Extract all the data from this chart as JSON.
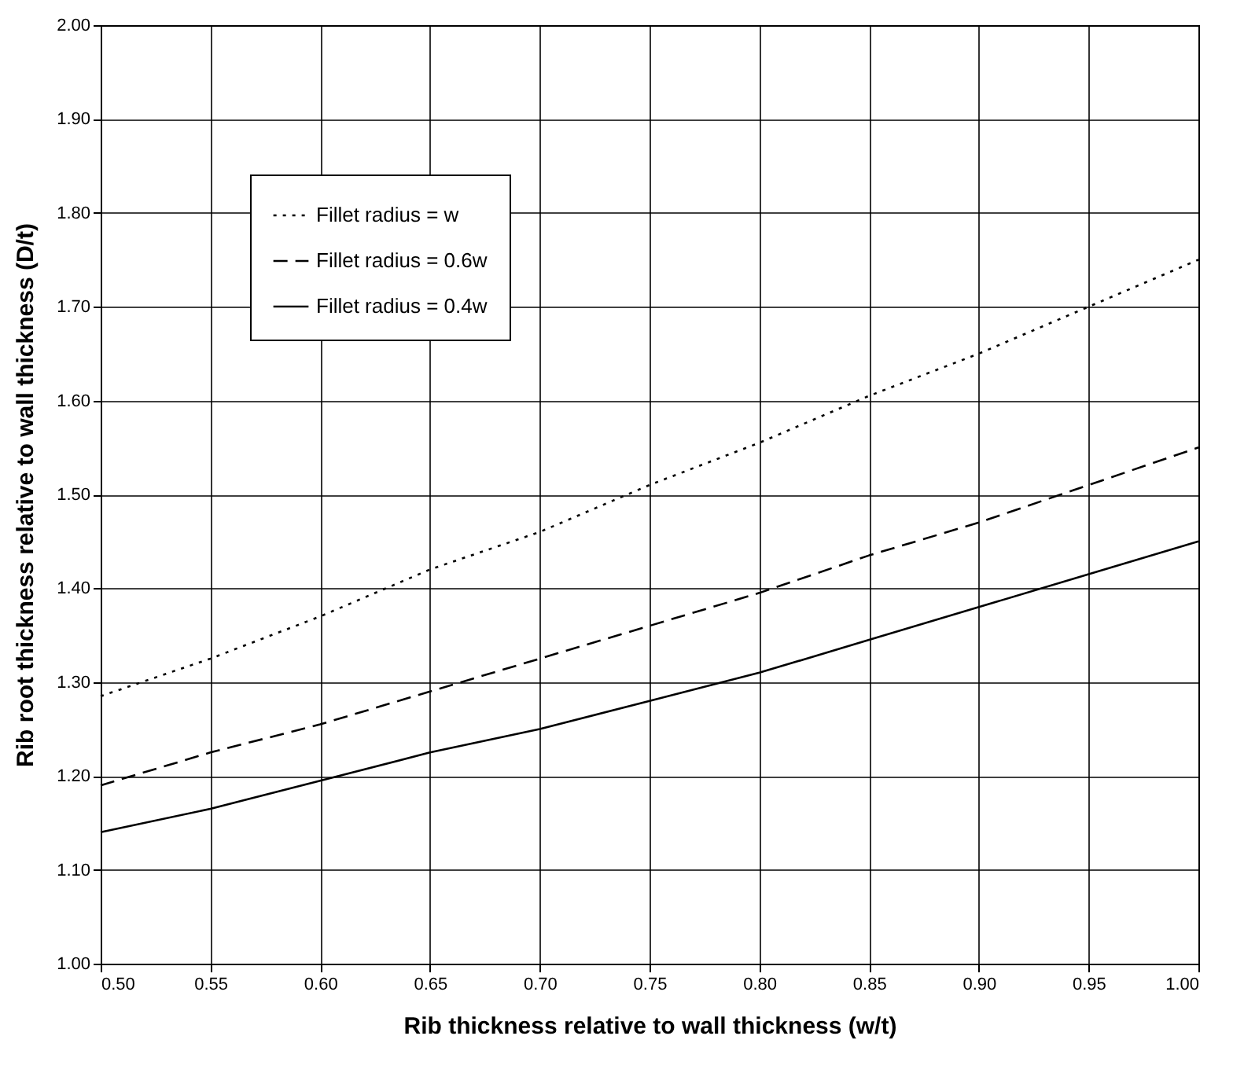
{
  "chart_data": {
    "type": "line",
    "xlabel": "Rib thickness relative to wall thickness (w/t)",
    "ylabel": "Rib root thickness relative to wall thickness (D/t)",
    "x": [
      0.5,
      0.55,
      0.6,
      0.65,
      0.7,
      0.75,
      0.8,
      0.85,
      0.9,
      0.95,
      1.0
    ],
    "series": [
      {
        "name": "Fillet radius = w",
        "color": "#000000",
        "line_style": "dotted",
        "values": [
          1.285,
          1.325,
          1.37,
          1.42,
          1.46,
          1.51,
          1.555,
          1.605,
          1.65,
          1.7,
          1.75
        ]
      },
      {
        "name": "Fillet radius = 0.6w",
        "color": "#000000",
        "line_style": "dashed",
        "values": [
          1.19,
          1.225,
          1.255,
          1.29,
          1.325,
          1.36,
          1.395,
          1.435,
          1.47,
          1.51,
          1.55
        ]
      },
      {
        "name": "Fillet radius = 0.4w",
        "color": "#000000",
        "line_style": "solid",
        "values": [
          1.14,
          1.165,
          1.195,
          1.225,
          1.25,
          1.28,
          1.31,
          1.345,
          1.38,
          1.415,
          1.45
        ]
      }
    ],
    "xlim": [
      0.5,
      1.0
    ],
    "xticks": [
      {
        "value": 0.5,
        "label": "0.50"
      },
      {
        "value": 0.55,
        "label": "0.55"
      },
      {
        "value": 0.6,
        "label": "0.60"
      },
      {
        "value": 0.65,
        "label": "0.65"
      },
      {
        "value": 0.7,
        "label": "0.70"
      },
      {
        "value": 0.75,
        "label": "0.75"
      },
      {
        "value": 0.8,
        "label": "0.80"
      },
      {
        "value": 0.85,
        "label": "0.85"
      },
      {
        "value": 0.9,
        "label": "0.90"
      },
      {
        "value": 0.95,
        "label": "0.95"
      },
      {
        "value": 1.0,
        "label": "1.00"
      }
    ],
    "ylim": [
      1.0,
      2.0
    ],
    "yticks": [
      {
        "value": 1.0,
        "label": "1.00"
      },
      {
        "value": 1.1,
        "label": "1.10"
      },
      {
        "value": 1.2,
        "label": "1.20"
      },
      {
        "value": 1.3,
        "label": "1.30"
      },
      {
        "value": 1.4,
        "label": "1.40"
      },
      {
        "value": 1.5,
        "label": "1.50"
      },
      {
        "value": 1.6,
        "label": "1.60"
      },
      {
        "value": 1.7,
        "label": "1.70"
      },
      {
        "value": 1.8,
        "label": "1.80"
      },
      {
        "value": 1.9,
        "label": "1.90"
      },
      {
        "value": 2.0,
        "label": "2.00"
      }
    ],
    "grid": true,
    "legend": "top left",
    "marker": "none"
  }
}
